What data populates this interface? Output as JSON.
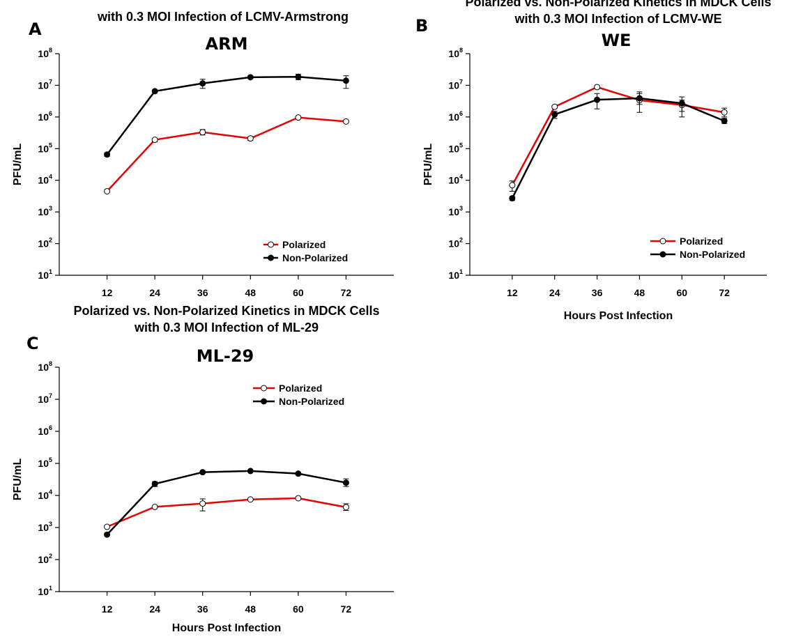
{
  "colors": {
    "polarized": "#e60000",
    "non_polarized": "#000000",
    "marker_fill_open": "#ffffff"
  },
  "chart_data": [
    {
      "panel": "A",
      "type": "line",
      "title": "ARM",
      "subtitle_lines": [
        "with 0.3 MOI Infection of LCMV-Armstrong"
      ],
      "xlabel": "",
      "ylabel": "PFU/mL",
      "x": [
        12,
        24,
        36,
        48,
        60,
        72
      ],
      "y_scale": "log",
      "ylim_exp": [
        1,
        8
      ],
      "y_ticks_exp": [
        1,
        2,
        3,
        4,
        5,
        6,
        7,
        8
      ],
      "y_tick_base": "10",
      "legend_position": "bottom-right",
      "series": [
        {
          "name": "Polarized",
          "values": [
            4500,
            190000,
            330000,
            210000,
            960000,
            720000
          ],
          "err_low": [
            4100,
            165000,
            270000,
            180000,
            900000,
            690000
          ],
          "err_high": [
            4900,
            210000,
            400000,
            240000,
            1020000,
            750000
          ]
        },
        {
          "name": "Non-Polarized",
          "values": [
            65000,
            6500000,
            11500000,
            18000000,
            18500000,
            14000000
          ],
          "err_low": [
            57000,
            6200000,
            8000000,
            17000000,
            15000000,
            8000000
          ],
          "err_high": [
            74000,
            6800000,
            15500000,
            19000000,
            22500000,
            20000000
          ]
        }
      ]
    },
    {
      "panel": "B",
      "type": "line",
      "title": "WE",
      "subtitle_lines": [
        "Polarized vs. Non-Polarized Kinetics in MDCK Cells",
        "with 0.3 MOI Infection of LCMV-WE"
      ],
      "xlabel": "Hours Post Infection",
      "ylabel": "PFU/mL",
      "x": [
        12,
        24,
        36,
        48,
        60,
        72
      ],
      "y_scale": "log",
      "ylim_exp": [
        1,
        8
      ],
      "y_ticks_exp": [
        1,
        2,
        3,
        4,
        5,
        6,
        7,
        8
      ],
      "y_tick_base": "10",
      "legend_position": "bottom-right",
      "series": [
        {
          "name": "Polarized",
          "values": [
            7000,
            2100000,
            8800000,
            3400000,
            2400000,
            1400000
          ],
          "err_low": [
            4500,
            1900000,
            7800000,
            1400000,
            1500000,
            1000000
          ],
          "err_high": [
            9500,
            2300000,
            9800000,
            5500000,
            3400000,
            1900000
          ]
        },
        {
          "name": "Non-Polarized",
          "values": [
            2700,
            1200000,
            3500000,
            3900000,
            2700000,
            750000
          ],
          "err_low": [
            2300,
            900000,
            1800000,
            2500000,
            1000000,
            620000
          ],
          "err_high": [
            3100,
            1500000,
            5500000,
            6200000,
            4300000,
            900000
          ]
        }
      ]
    },
    {
      "panel": "C",
      "type": "line",
      "title": "ML-29",
      "subtitle_lines": [
        "Polarized vs. Non-Polarized Kinetics in MDCK Cells",
        "with 0.3 MOI Infection of ML-29"
      ],
      "xlabel": "Hours Post Infection",
      "ylabel": "PFU/mL",
      "x": [
        12,
        24,
        36,
        48,
        60,
        72
      ],
      "y_scale": "log",
      "ylim_exp": [
        1,
        8
      ],
      "y_ticks_exp": [
        1,
        2,
        3,
        4,
        5,
        6,
        7,
        8
      ],
      "y_tick_base": "10",
      "legend_position": "top-right",
      "series": [
        {
          "name": "Polarized",
          "values": [
            1050,
            4400,
            5600,
            7500,
            8200,
            4300
          ],
          "err_low": [
            980,
            4100,
            3300,
            7000,
            7700,
            3400
          ],
          "err_high": [
            1150,
            4700,
            7800,
            8000,
            8700,
            5500
          ]
        },
        {
          "name": "Non-Polarized",
          "values": [
            600,
            23000,
            53000,
            58000,
            48000,
            25000
          ],
          "err_low": [
            560,
            19000,
            50000,
            55000,
            45000,
            19000
          ],
          "err_high": [
            640,
            27000,
            56000,
            61000,
            51000,
            33000
          ]
        }
      ]
    }
  ]
}
